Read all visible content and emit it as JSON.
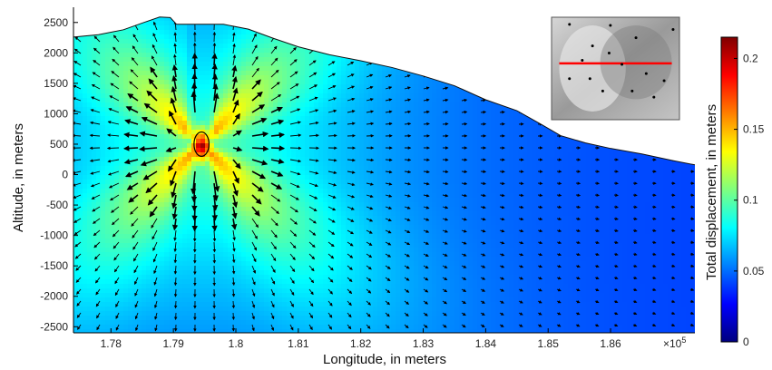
{
  "chart_data": {
    "type": "heatmap",
    "title": "",
    "xlabel": "Longitude, in meters",
    "ylabel": "Altitude, in meters",
    "colorbar_label": "Total displacement, in meters",
    "x_exponent_label": "×10",
    "x_exponent_power": "5",
    "xlim": [
      1.774,
      1.8735
    ],
    "ylim": [
      -2600,
      2750
    ],
    "x_ticks": [
      1.78,
      1.79,
      1.8,
      1.81,
      1.82,
      1.83,
      1.84,
      1.85,
      1.86
    ],
    "x_tick_labels": [
      "1.78",
      "1.79",
      "1.8",
      "1.81",
      "1.82",
      "1.83",
      "1.84",
      "1.85",
      "1.86"
    ],
    "y_ticks": [
      2500,
      2000,
      1500,
      1000,
      500,
      0,
      -500,
      -1000,
      -1500,
      -2000,
      -2500
    ],
    "y_tick_labels": [
      "2500",
      "2000",
      "1500",
      "1000",
      "500",
      "0",
      "-500",
      "-1000",
      "-1500",
      "-2000",
      "-2500"
    ],
    "colorbar_range": [
      0,
      0.215
    ],
    "colorbar_ticks": [
      0,
      0.05,
      0.1,
      0.15,
      0.2
    ],
    "colorbar_tick_labels": [
      "0",
      "0.05",
      "0.1",
      "0.15",
      "0.2"
    ],
    "colormap": [
      "#00007f",
      "#0000ff",
      "#007fff",
      "#00ffff",
      "#7fff7f",
      "#ffff00",
      "#ff7f00",
      "#ff0000",
      "#7f0000"
    ],
    "source_center": {
      "x": 1.7945,
      "y": 500
    },
    "source_radii": {
      "x": 0.0012,
      "y": 200
    },
    "max_displacement": 0.215,
    "topography": [
      {
        "x": 1.774,
        "y": 2260
      },
      {
        "x": 1.778,
        "y": 2300
      },
      {
        "x": 1.782,
        "y": 2380
      },
      {
        "x": 1.785,
        "y": 2490
      },
      {
        "x": 1.7878,
        "y": 2590
      },
      {
        "x": 1.7895,
        "y": 2580
      },
      {
        "x": 1.7905,
        "y": 2470
      },
      {
        "x": 1.7925,
        "y": 2470
      },
      {
        "x": 1.798,
        "y": 2470
      },
      {
        "x": 1.802,
        "y": 2390
      },
      {
        "x": 1.806,
        "y": 2240
      },
      {
        "x": 1.81,
        "y": 2100
      },
      {
        "x": 1.815,
        "y": 1970
      },
      {
        "x": 1.82,
        "y": 1870
      },
      {
        "x": 1.825,
        "y": 1760
      },
      {
        "x": 1.83,
        "y": 1620
      },
      {
        "x": 1.835,
        "y": 1460
      },
      {
        "x": 1.84,
        "y": 1230
      },
      {
        "x": 1.845,
        "y": 1050
      },
      {
        "x": 1.849,
        "y": 820
      },
      {
        "x": 1.852,
        "y": 640
      },
      {
        "x": 1.856,
        "y": 520
      },
      {
        "x": 1.86,
        "y": 430
      },
      {
        "x": 1.865,
        "y": 340
      },
      {
        "x": 1.87,
        "y": 230
      },
      {
        "x": 1.8735,
        "y": 160
      }
    ]
  },
  "inset_map": {
    "profile_line_color": "#ff0000",
    "marker_color": "#000000",
    "profile_start": {
      "u": 0.06,
      "v": 0.45
    },
    "profile_end": {
      "u": 0.94,
      "v": 0.45
    },
    "stations": [
      {
        "u": 0.14,
        "v": 0.07
      },
      {
        "u": 0.46,
        "v": 0.08
      },
      {
        "u": 0.95,
        "v": 0.12
      },
      {
        "u": 0.66,
        "v": 0.2
      },
      {
        "u": 0.32,
        "v": 0.28
      },
      {
        "u": 0.45,
        "v": 0.35
      },
      {
        "u": 0.24,
        "v": 0.42
      },
      {
        "u": 0.55,
        "v": 0.46
      },
      {
        "u": 0.74,
        "v": 0.55
      },
      {
        "u": 0.14,
        "v": 0.6
      },
      {
        "u": 0.3,
        "v": 0.6
      },
      {
        "u": 0.88,
        "v": 0.62
      },
      {
        "u": 0.4,
        "v": 0.72
      },
      {
        "u": 0.63,
        "v": 0.72
      },
      {
        "u": 0.8,
        "v": 0.78
      }
    ]
  }
}
